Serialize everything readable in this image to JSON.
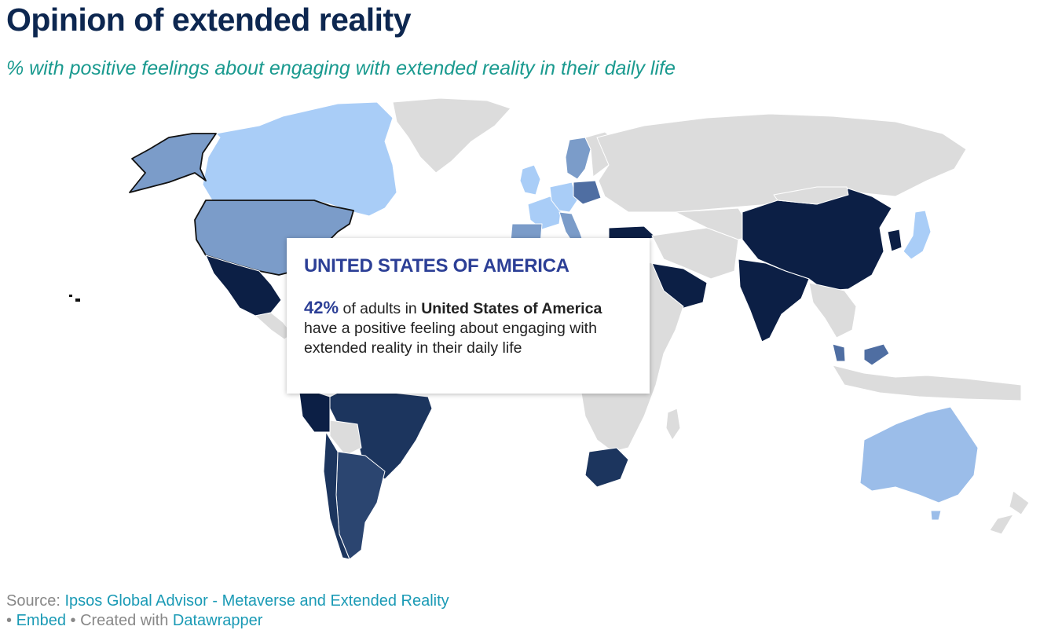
{
  "header": {
    "title": "Opinion of extended reality",
    "subtitle": "% with positive feelings about engaging with extended reality in their daily life"
  },
  "colors": {
    "no_data": "#dcdcdc",
    "lightest": "#a9cdf7",
    "light": "#9bbde9",
    "mid_light": "#7b9cc9",
    "mid": "#4f6ea2",
    "dark": "#2b4570",
    "darker": "#1c355e",
    "darkest": "#0c1f45",
    "accent": "#2c3f96"
  },
  "tooltip": {
    "country": "UNITED STATES OF AMERICA",
    "value": "42%",
    "text_a": "of adults in",
    "country_name": "United States of America",
    "text_b": "have a positive feeling about engaging with extended reality in their daily life"
  },
  "footer": {
    "source_label": "Source:",
    "source_link": "Ipsos Global Advisor - Metaverse and Extended Reality",
    "bullet": "•",
    "embed_link": "Embed",
    "created_text": "• Created with",
    "datawrapper_link": "Datawrapper"
  }
}
